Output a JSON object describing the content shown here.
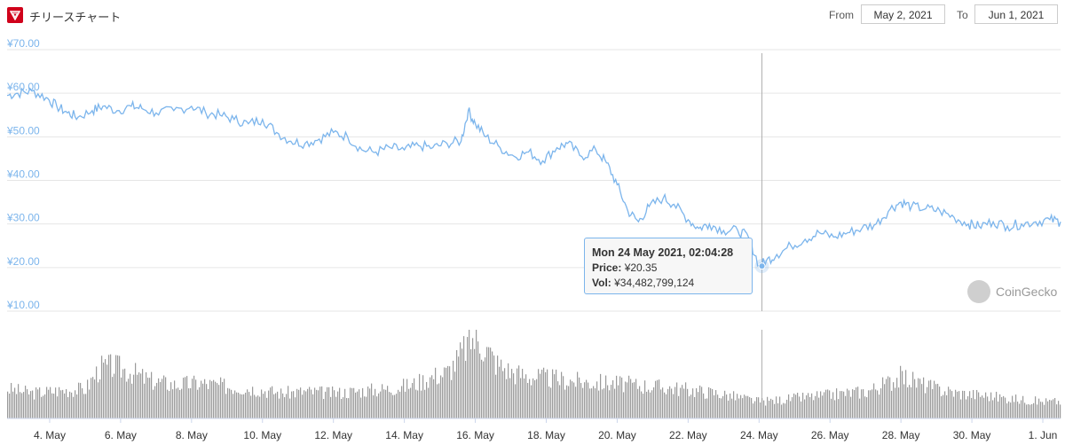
{
  "header": {
    "title": "チリースチャート",
    "from_label": "From",
    "from_value": "May 2, 2021",
    "to_label": "To",
    "to_value": "Jun 1, 2021"
  },
  "tooltip": {
    "date": "Mon 24 May 2021, 02:04:28",
    "price_label": "Price:",
    "price_value": "¥20.35",
    "vol_label": "Vol:",
    "vol_value": "¥34,482,799,124"
  },
  "watermark": {
    "text": "CoinGecko"
  },
  "colors": {
    "line": "#7cb5ec",
    "volume": "#9a9a9a",
    "grid": "#e6e6e6",
    "axis_text": "#7cb5ec",
    "logo": "#d0021b"
  },
  "chart_data": {
    "type": "line",
    "title": "",
    "ylim": [
      10,
      70
    ],
    "y_ticks": [
      "¥70.00",
      "¥60.00",
      "¥50.00",
      "¥40.00",
      "¥30.00",
      "¥20.00",
      "¥10.00"
    ],
    "y_tick_values": [
      70,
      60,
      50,
      40,
      30,
      20,
      10
    ],
    "x_ticks": [
      "4. May",
      "6. May",
      "8. May",
      "10. May",
      "12. May",
      "14. May",
      "16. May",
      "18. May",
      "20. May",
      "22. May",
      "24. May",
      "26. May",
      "28. May",
      "30. May",
      "1. Jun"
    ],
    "x_tick_days": [
      4,
      6,
      8,
      10,
      12,
      14,
      16,
      18,
      20,
      22,
      24,
      26,
      28,
      30,
      32
    ],
    "x_range_days": [
      2.8,
      32.5
    ],
    "grid": true,
    "series": [
      {
        "kind": "price",
        "x_days": [
          2.8,
          3.1,
          3.5,
          3.9,
          4.2,
          4.5,
          4.8,
          5.2,
          5.5,
          5.9,
          6.3,
          6.6,
          7.0,
          7.5,
          8.0,
          8.4,
          8.8,
          9.2,
          9.6,
          10.0,
          10.4,
          10.8,
          11.2,
          11.6,
          12.0,
          12.4,
          12.8,
          13.2,
          13.6,
          14.0,
          14.4,
          14.8,
          15.2,
          15.6,
          15.8,
          16.0,
          16.3,
          16.7,
          17.1,
          17.5,
          17.9,
          18.3,
          18.6,
          19.0,
          19.4,
          19.7,
          20.0,
          20.3,
          20.6,
          20.9,
          21.3,
          21.6,
          22.0,
          22.3,
          22.6,
          23.0,
          23.4,
          23.7,
          24.0,
          24.2,
          24.5,
          24.9,
          25.3,
          25.7,
          26.1,
          26.5,
          26.9,
          27.3,
          27.7,
          28.0,
          28.3,
          28.7,
          29.1,
          29.5,
          29.9,
          30.2,
          30.6,
          31.0,
          31.4,
          31.8,
          32.2,
          32.5
        ],
        "y": [
          59.5,
          60,
          60.5,
          59,
          57,
          55.5,
          54.5,
          56,
          57,
          56,
          57,
          56.5,
          55.5,
          56,
          57,
          55.5,
          55,
          54,
          53,
          54,
          51,
          49,
          48.5,
          49.5,
          51,
          50,
          47,
          46.5,
          47.5,
          47,
          48,
          47.5,
          48.5,
          49,
          56,
          53,
          50,
          47.5,
          45.5,
          46.5,
          44.5,
          47.5,
          48.5,
          45.5,
          47,
          44,
          39,
          33,
          30.5,
          34,
          36,
          34.5,
          31,
          29,
          30,
          28.5,
          28.5,
          27,
          20.5,
          21.5,
          23,
          25,
          26.5,
          28,
          27,
          28,
          29,
          30,
          33.5,
          35,
          34,
          33.5,
          33,
          31.5,
          30,
          29.5,
          30.5,
          29.5,
          30,
          30.5,
          31,
          30.5
        ]
      },
      {
        "kind": "volume",
        "x_days": [
          2.8,
          3.5,
          4.2,
          5.0,
          5.4,
          5.8,
          6.3,
          6.8,
          7.5,
          8.2,
          9.0,
          9.8,
          10.5,
          11.2,
          12.0,
          12.8,
          13.5,
          14.2,
          14.8,
          15.2,
          15.5,
          15.7,
          15.9,
          16.2,
          16.6,
          17.0,
          17.5,
          18.0,
          18.6,
          19.2,
          19.8,
          20.4,
          21.0,
          21.6,
          22.2,
          22.8,
          23.4,
          24.0,
          24.6,
          25.2,
          25.8,
          26.4,
          27.0,
          27.5,
          28.0,
          28.5,
          29.0,
          29.6,
          30.2,
          30.8,
          31.4,
          32.0,
          32.5
        ],
        "relative": [
          0.35,
          0.3,
          0.33,
          0.35,
          0.6,
          0.62,
          0.55,
          0.45,
          0.4,
          0.42,
          0.38,
          0.35,
          0.3,
          0.32,
          0.3,
          0.33,
          0.35,
          0.4,
          0.5,
          0.55,
          0.7,
          0.85,
          0.95,
          0.88,
          0.65,
          0.55,
          0.5,
          0.48,
          0.45,
          0.43,
          0.42,
          0.4,
          0.38,
          0.36,
          0.33,
          0.3,
          0.25,
          0.2,
          0.22,
          0.25,
          0.27,
          0.3,
          0.32,
          0.4,
          0.5,
          0.42,
          0.35,
          0.3,
          0.28,
          0.25,
          0.22,
          0.2,
          0.2
        ]
      }
    ],
    "crosshair_day": 24.08,
    "highlight_point": {
      "x_day": 24.08,
      "y": 20.35
    }
  }
}
